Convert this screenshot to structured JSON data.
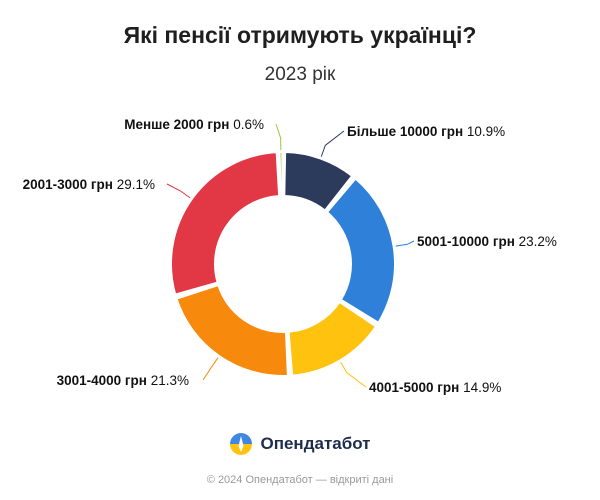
{
  "chart_data": {
    "type": "pie",
    "style": "donut",
    "title": "Які пенсії отримують українці?",
    "subtitle": "2023 рік",
    "unit": "%",
    "slices": [
      {
        "name": "Більше 10000 грн",
        "value": 10.9,
        "label": "10.9%",
        "color": "#2c3a5c"
      },
      {
        "name": "5001-10000 грн",
        "value": 23.2,
        "label": "23.2%",
        "color": "#2f80d9"
      },
      {
        "name": "4001-5000 грн",
        "value": 14.9,
        "label": "14.9%",
        "color": "#ffc20e"
      },
      {
        "name": "3001-4000 грн",
        "value": 21.3,
        "label": "21.3%",
        "color": "#f7890c"
      },
      {
        "name": "2001-3000 грн",
        "value": 29.1,
        "label": "29.1%",
        "color": "#e23744"
      },
      {
        "name": "Менше 2000 грн",
        "value": 0.6,
        "label": "0.6%",
        "color": "#9bc53d"
      }
    ]
  },
  "brand": {
    "name": "Опендатабот"
  },
  "footer": {
    "text": "© 2024 Опендатабот — відкриті дані"
  }
}
